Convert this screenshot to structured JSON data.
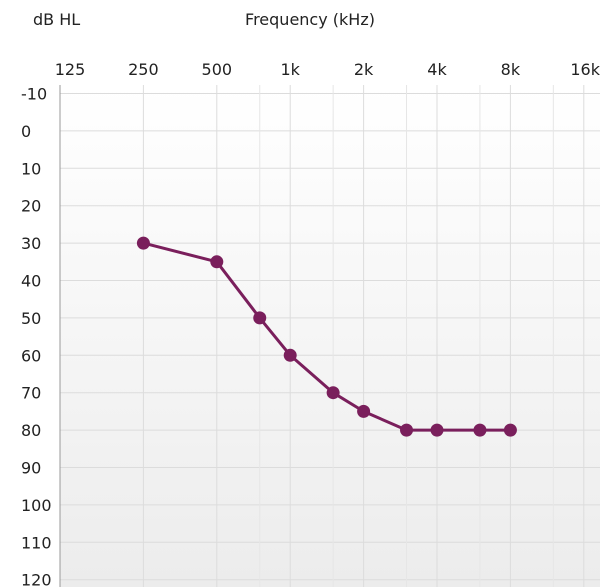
{
  "chart_data": {
    "type": "line",
    "ylabel": "dB HL",
    "xlabel": "Frequency (kHz)",
    "x_tick_labels": [
      "125",
      "250",
      "500",
      "1k",
      "2k",
      "4k",
      "8k",
      "16k"
    ],
    "x_tick_values": [
      125,
      250,
      500,
      1000,
      2000,
      4000,
      8000,
      16000
    ],
    "x_scale": "log2",
    "x_minor_values": [
      750,
      1500,
      3000,
      6000,
      12000
    ],
    "y_tick_labels": [
      "-10",
      "0",
      "10",
      "20",
      "30",
      "40",
      "50",
      "60",
      "70",
      "80",
      "90",
      "100",
      "110",
      "120"
    ],
    "ylim": [
      -10,
      120
    ],
    "y_inverted": true,
    "grid": true,
    "series": [
      {
        "x": [
          250,
          500,
          750,
          1000,
          1500,
          2000,
          3000,
          4000,
          6000,
          8000
        ],
        "y": [
          30,
          35,
          50,
          60,
          70,
          75,
          80,
          80,
          80,
          80
        ],
        "color": "#7a1f5c"
      }
    ]
  }
}
